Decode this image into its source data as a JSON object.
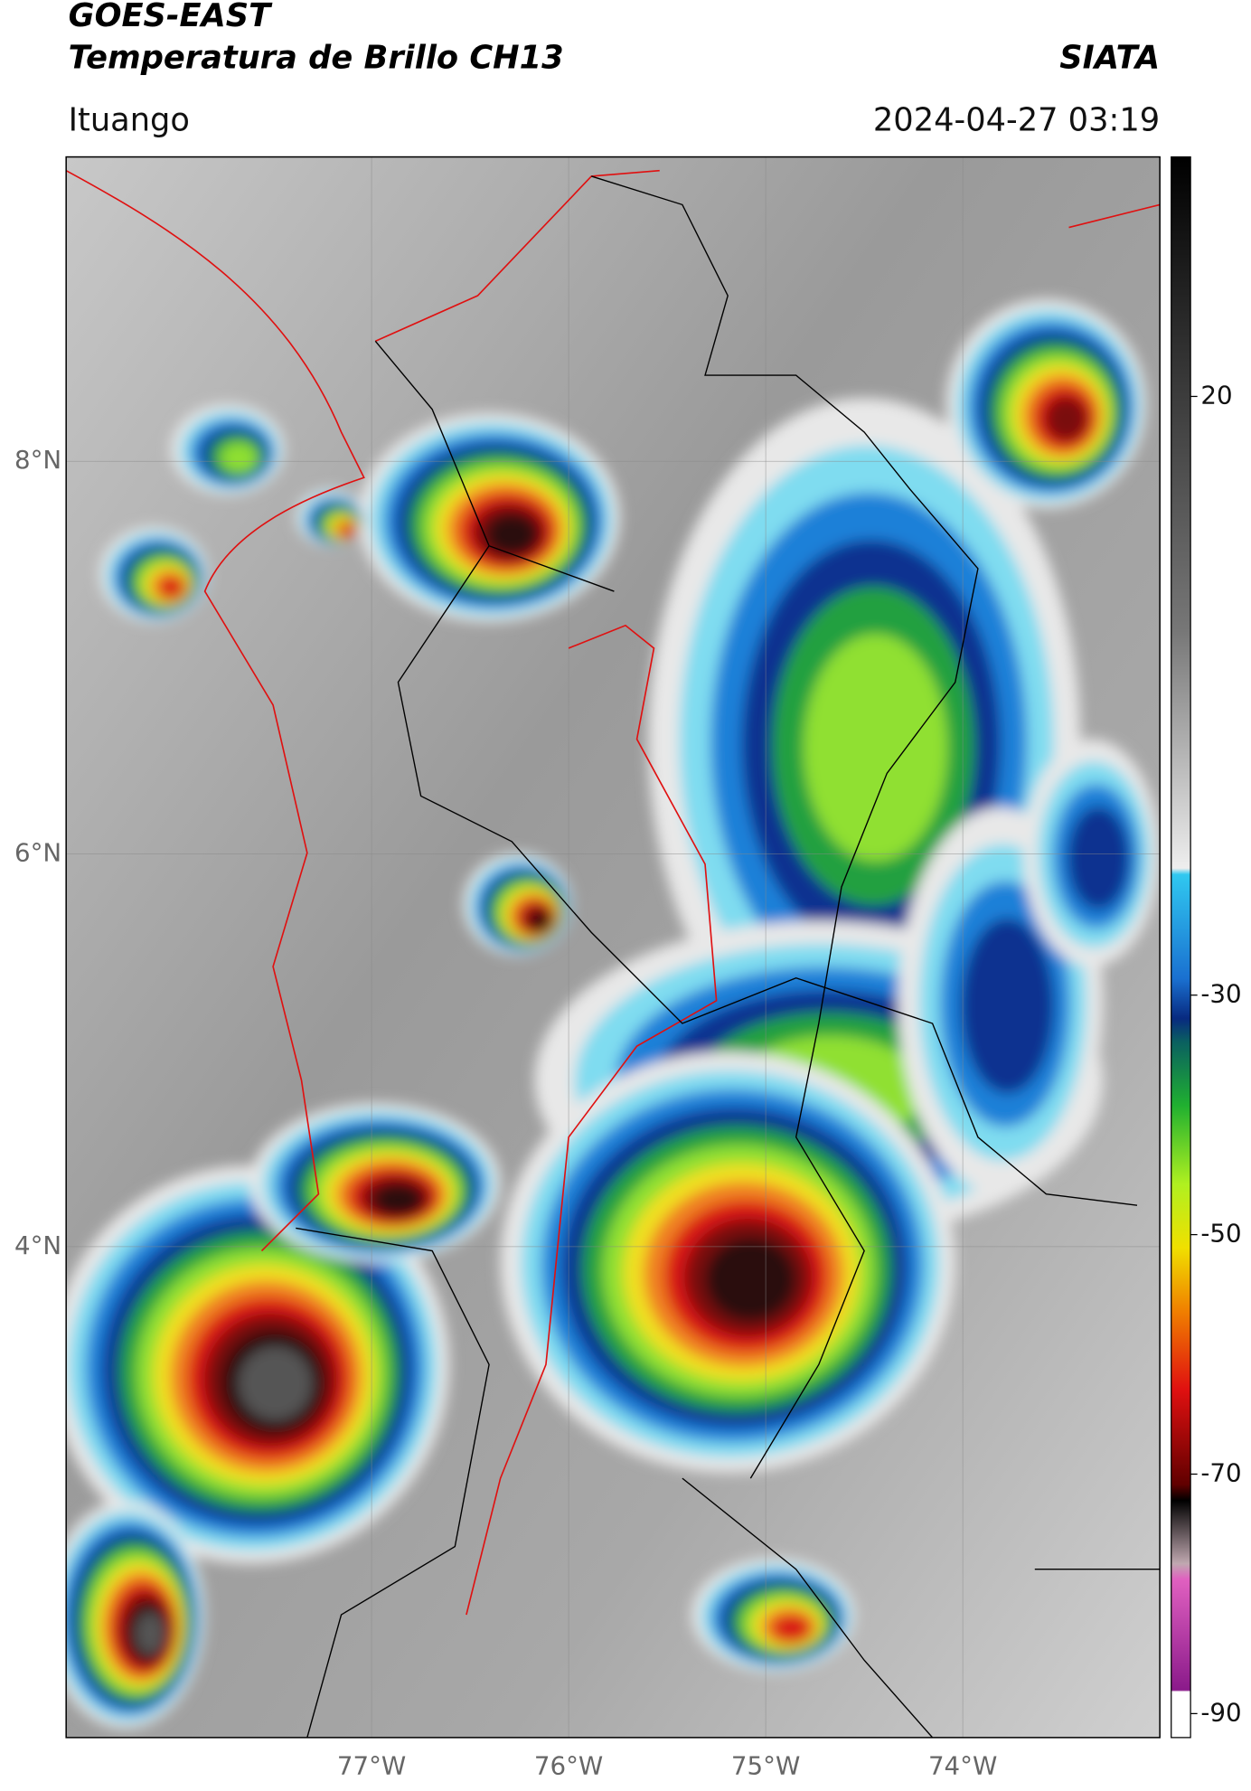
{
  "header": {
    "line1": "GOES-EAST",
    "line2": "Temperatura de Brillo CH13",
    "brand": "SIATA",
    "location": "Ituango",
    "timestamp": "2024-04-27 03:19"
  },
  "map": {
    "lon_range": [
      -78.55,
      -73.0
    ],
    "lat_range": [
      1.5,
      9.55
    ],
    "lat_ticks": [
      {
        "value": 8,
        "label": "8°N"
      },
      {
        "value": 6,
        "label": "6°N"
      },
      {
        "value": 4,
        "label": "4°N"
      }
    ],
    "lon_ticks": [
      {
        "value": -77,
        "label": "77°W"
      },
      {
        "value": -76,
        "label": "76°W"
      },
      {
        "value": -75,
        "label": "75°W"
      },
      {
        "value": -74,
        "label": "74°W"
      }
    ]
  },
  "colorbar": {
    "range": [
      -92,
      40
    ],
    "ticks": [
      20,
      -30,
      -50,
      -70,
      -90
    ]
  }
}
